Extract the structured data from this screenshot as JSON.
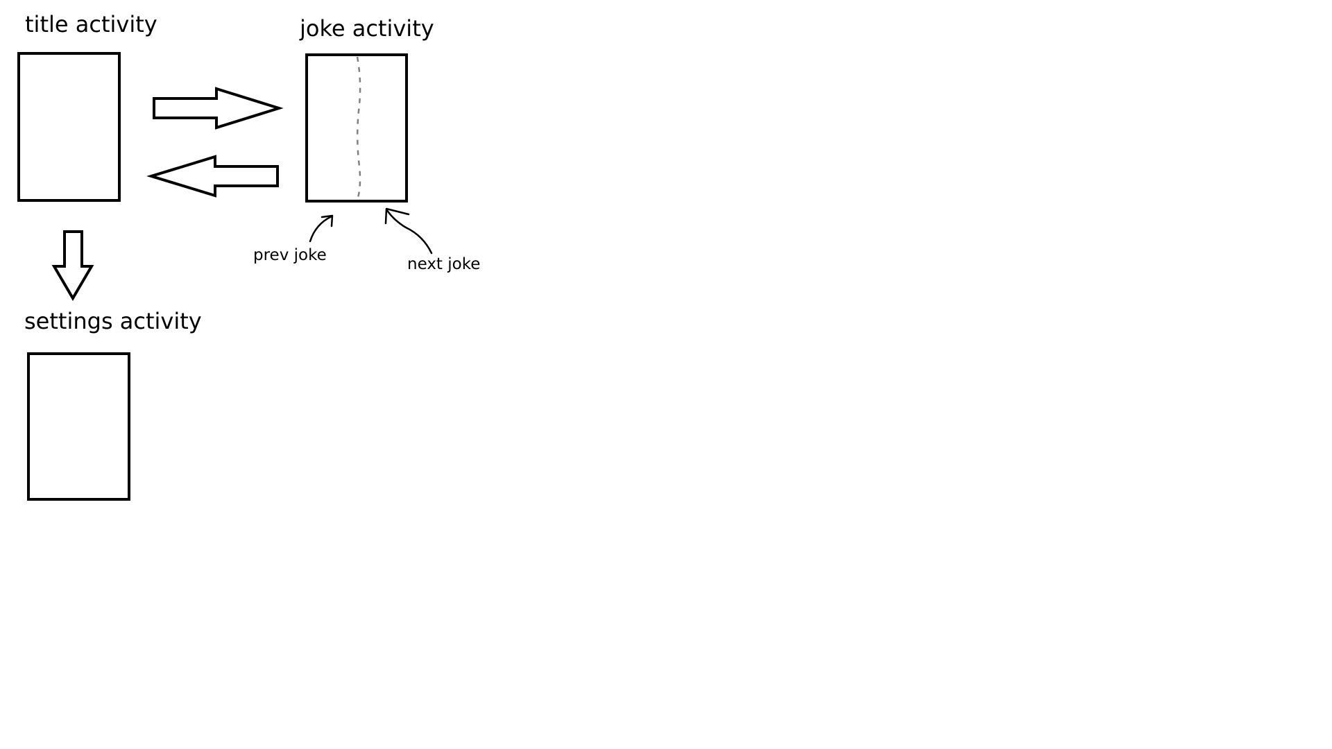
{
  "labels": {
    "title_activity": "title activity",
    "joke_activity": "joke activity",
    "settings_activity": "settings activity",
    "prev_joke": "prev joke",
    "next_joke": "next joke"
  },
  "colors": {
    "stroke": "#000000",
    "divider": "#808080",
    "background": "#ffffff"
  }
}
